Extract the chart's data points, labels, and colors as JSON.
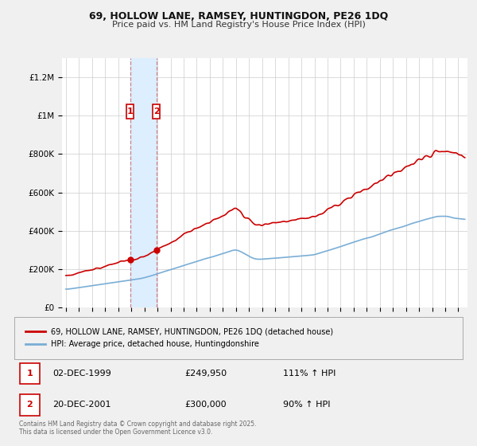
{
  "title_line1": "69, HOLLOW LANE, RAMSEY, HUNTINGDON, PE26 1DQ",
  "title_line2": "Price paid vs. HM Land Registry's House Price Index (HPI)",
  "legend_entry1": "69, HOLLOW LANE, RAMSEY, HUNTINGDON, PE26 1DQ (detached house)",
  "legend_entry2": "HPI: Average price, detached house, Huntingdonshire",
  "sale1_date": "02-DEC-1999",
  "sale1_price": "£249,950",
  "sale1_hpi": "111% ↑ HPI",
  "sale2_date": "20-DEC-2001",
  "sale2_price": "£300,000",
  "sale2_hpi": "90% ↑ HPI",
  "footer": "Contains HM Land Registry data © Crown copyright and database right 2025.\nThis data is licensed under the Open Government Licence v3.0.",
  "property_color": "#cc0000",
  "hpi_color": "#7aaed6",
  "highlight_color": "#ddeeff",
  "sale_marker_color": "#cc0000",
  "ylim_max": 1300000,
  "yticks": [
    0,
    200000,
    400000,
    600000,
    800000,
    1000000,
    1200000
  ],
  "ytick_labels": [
    "£0",
    "£200K",
    "£400K",
    "£600K",
    "£800K",
    "£1M",
    "£1.2M"
  ],
  "background_color": "#f0f0f0",
  "plot_background": "#ffffff"
}
